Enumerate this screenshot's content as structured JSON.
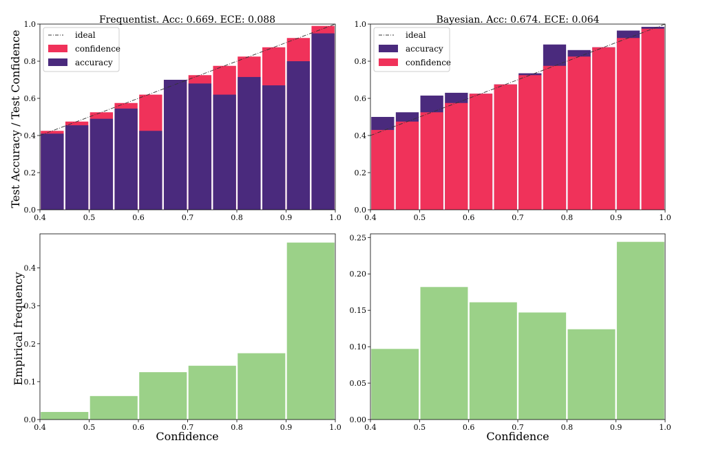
{
  "chart_data": [
    {
      "type": "bar",
      "title": "Frequentist. Acc: 0.669. ECE: 0.088",
      "xlabel": "",
      "ylabel": "Test Accuracy / Test Confidence",
      "xlim": [
        0.4,
        1.0
      ],
      "ylim": [
        0,
        1.0
      ],
      "xticks": [
        "0.4",
        "0.5",
        "0.6",
        "0.7",
        "0.8",
        "0.9",
        "1.0"
      ],
      "yticks": [
        "0.0",
        "0.2",
        "0.4",
        "0.6",
        "0.8",
        "1.0"
      ],
      "bins": [
        0.4,
        0.45,
        0.5,
        0.55,
        0.6,
        0.65,
        0.7,
        0.75,
        0.8,
        0.85,
        0.9,
        0.95
      ],
      "bin_width": 0.05,
      "back_series": "confidence",
      "series": [
        {
          "name": "confidence",
          "color": "#f0325a",
          "values": [
            0.425,
            0.475,
            0.525,
            0.575,
            0.62,
            0.7,
            0.725,
            0.775,
            0.825,
            0.875,
            0.925,
            0.99
          ]
        },
        {
          "name": "accuracy",
          "color": "#4a2a7d",
          "values": [
            0.41,
            0.455,
            0.49,
            0.545,
            0.425,
            0.7,
            0.68,
            0.62,
            0.715,
            0.67,
            0.8,
            0.95
          ]
        }
      ],
      "legend": {
        "position": "top-left",
        "entries": [
          "ideal",
          "confidence",
          "accuracy"
        ]
      },
      "ideal_line": [
        [
          0.4,
          0.4
        ],
        [
          1.0,
          1.0
        ]
      ]
    },
    {
      "type": "bar",
      "title": "Bayesian. Acc: 0.674. ECE: 0.064",
      "xlabel": "",
      "ylabel": "",
      "xlim": [
        0.4,
        1.0
      ],
      "ylim": [
        0,
        1.0
      ],
      "xticks": [
        "0.4",
        "0.5",
        "0.6",
        "0.7",
        "0.8",
        "0.9",
        "1.0"
      ],
      "yticks": [
        "0.0",
        "0.2",
        "0.4",
        "0.6",
        "0.8",
        "1.0"
      ],
      "bins": [
        0.4,
        0.45,
        0.5,
        0.55,
        0.6,
        0.65,
        0.7,
        0.75,
        0.8,
        0.85,
        0.9,
        0.95
      ],
      "bin_width": 0.05,
      "back_series": "accuracy",
      "series": [
        {
          "name": "accuracy",
          "color": "#4a2a7d",
          "values": [
            0.5,
            0.525,
            0.615,
            0.63,
            0.625,
            0.675,
            0.735,
            0.89,
            0.86,
            0.875,
            0.965,
            0.985
          ]
        },
        {
          "name": "confidence",
          "color": "#f0325a",
          "values": [
            0.43,
            0.475,
            0.525,
            0.575,
            0.625,
            0.675,
            0.725,
            0.775,
            0.825,
            0.875,
            0.925,
            0.975
          ]
        }
      ],
      "legend": {
        "position": "top-left",
        "entries": [
          "ideal",
          "accuracy",
          "confidence"
        ]
      },
      "ideal_line": [
        [
          0.4,
          0.4
        ],
        [
          1.0,
          1.0
        ]
      ]
    },
    {
      "type": "bar",
      "title": "",
      "xlabel": "Confidence",
      "ylabel": "Empirical frequency",
      "xlim": [
        0.4,
        1.0
      ],
      "ylim": [
        0,
        0.49
      ],
      "xticks": [
        "0.4",
        "0.5",
        "0.6",
        "0.7",
        "0.8",
        "0.9",
        "1.0"
      ],
      "yticks": [
        "0.0",
        "0.1",
        "0.2",
        "0.3",
        "0.4"
      ],
      "bins": [
        0.4,
        0.5,
        0.6,
        0.7,
        0.8,
        0.9
      ],
      "bin_width": 0.1,
      "color": "#9bd188",
      "values": [
        0.02,
        0.062,
        0.125,
        0.142,
        0.175,
        0.467
      ]
    },
    {
      "type": "bar",
      "title": "",
      "xlabel": "Confidence",
      "ylabel": "",
      "xlim": [
        0.4,
        1.0
      ],
      "ylim": [
        0,
        0.255
      ],
      "xticks": [
        "0.4",
        "0.5",
        "0.6",
        "0.7",
        "0.8",
        "0.9",
        "1.0"
      ],
      "yticks": [
        "0.00",
        "0.05",
        "0.10",
        "0.15",
        "0.20",
        "0.25"
      ],
      "bins": [
        0.4,
        0.5,
        0.6,
        0.7,
        0.8,
        0.9
      ],
      "bin_width": 0.1,
      "color": "#9bd188",
      "values": [
        0.097,
        0.182,
        0.161,
        0.147,
        0.124,
        0.244
      ]
    }
  ]
}
